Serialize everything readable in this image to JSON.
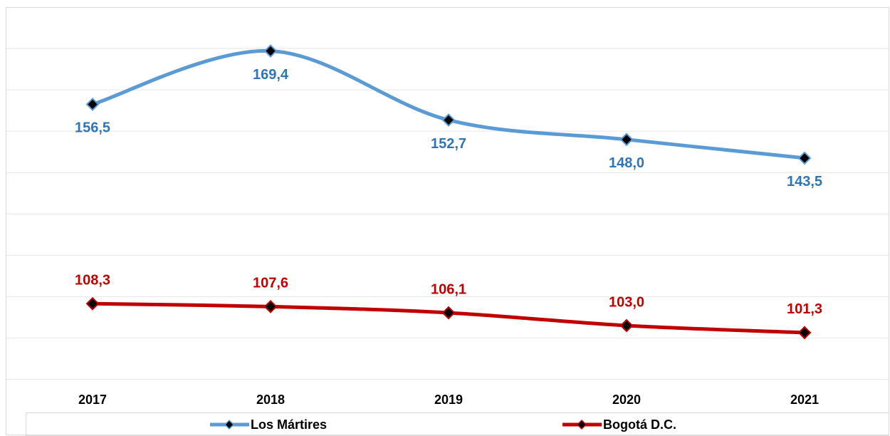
{
  "chart_data": {
    "type": "line",
    "categories": [
      "2017",
      "2018",
      "2019",
      "2020",
      "2021"
    ],
    "series": [
      {
        "name": "Los Mártires",
        "color": "#5b9bd5",
        "label_color": "#2e75b6",
        "values": [
          156.5,
          169.4,
          152.7,
          148.0,
          143.5
        ],
        "value_labels": [
          "156,5",
          "169,4",
          "152,7",
          "148,0",
          "143,5"
        ]
      },
      {
        "name": "Bogotá D.C.",
        "color": "#c00000",
        "label_color": "#c00000",
        "values": [
          108.3,
          107.6,
          106.1,
          103.0,
          101.3
        ],
        "value_labels": [
          "108,3",
          "107,6",
          "106,1",
          "103,0",
          "101,3"
        ]
      }
    ],
    "ylim": [
      80,
      180
    ],
    "yticks": [
      90,
      100,
      110,
      120,
      130,
      140,
      150,
      160,
      170
    ],
    "grid": true,
    "smooth": true,
    "legend": "bottom"
  }
}
